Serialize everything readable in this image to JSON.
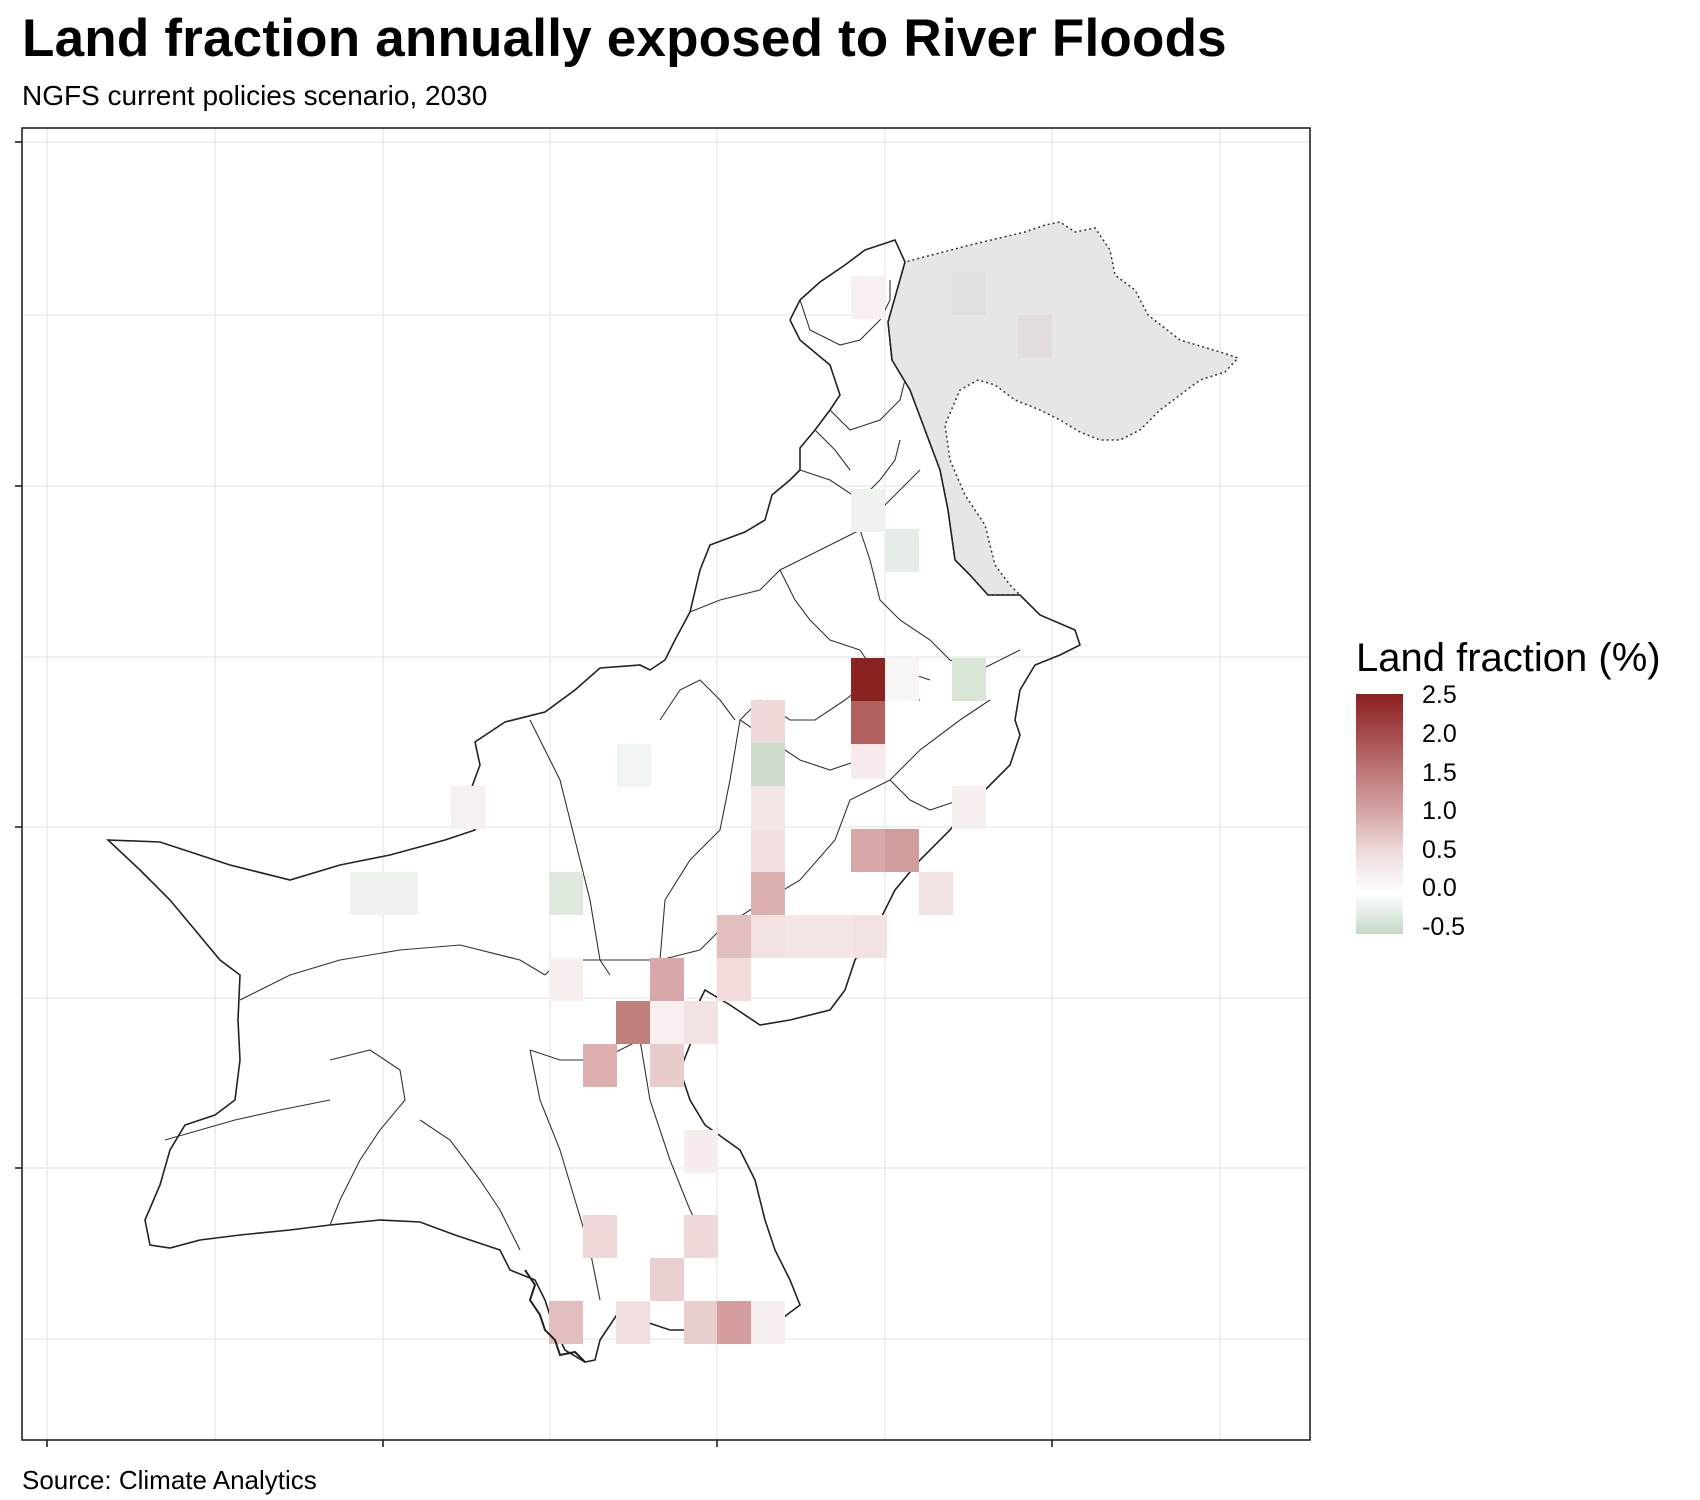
{
  "title": "Land fraction annually exposed to River Floods",
  "subtitle": "NGFS current policies scenario, 2030",
  "caption": "Source: Climate Analytics",
  "legend": {
    "title": "Land fraction (%)",
    "labels": [
      "2.5",
      "2.0",
      "1.5",
      "1.0",
      "0.5",
      "0.0",
      "-0.5"
    ],
    "colors": {
      "high": "#8b1f1f",
      "mid": "#ffffff",
      "low": "#c5d8c5"
    }
  },
  "map": {
    "region": "Pakistan",
    "disputed_area_color": "#e6e6e6"
  }
}
